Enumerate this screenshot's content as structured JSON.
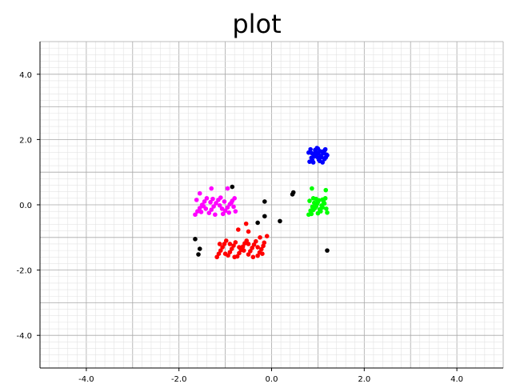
{
  "chart_data": {
    "type": "scatter",
    "title": "plot",
    "xlim": [
      -5,
      5
    ],
    "ylim": [
      -5,
      5
    ],
    "grid": true,
    "x_ticks": [
      "-4.0",
      "-2.0",
      "0.0",
      "2.0",
      "4.0"
    ],
    "y_ticks": [
      "4.0",
      "2.0",
      "0.0",
      "-2.0",
      "-4.0"
    ],
    "series": [
      {
        "color": "#0000ff",
        "points": [
          [
            0.82,
            1.32
          ],
          [
            0.86,
            1.44
          ],
          [
            0.9,
            1.56
          ],
          [
            0.94,
            1.68
          ],
          [
            0.98,
            1.74
          ],
          [
            1.02,
            1.38
          ],
          [
            1.06,
            1.5
          ],
          [
            1.1,
            1.62
          ],
          [
            1.14,
            1.4
          ],
          [
            1.18,
            1.54
          ],
          [
            0.84,
            1.7
          ],
          [
            0.88,
            1.36
          ],
          [
            0.92,
            1.48
          ],
          [
            0.96,
            1.6
          ],
          [
            1.0,
            1.72
          ],
          [
            1.04,
            1.34
          ],
          [
            1.08,
            1.46
          ],
          [
            1.12,
            1.58
          ],
          [
            1.16,
            1.7
          ],
          [
            1.2,
            1.52
          ],
          [
            0.8,
            1.6
          ],
          [
            0.9,
            1.3
          ],
          [
            1.0,
            1.45
          ],
          [
            1.1,
            1.3
          ],
          [
            1.14,
            1.66
          ],
          [
            0.95,
            1.52
          ],
          [
            1.05,
            1.64
          ],
          [
            0.87,
            1.58
          ],
          [
            1.17,
            1.45
          ],
          [
            1.0,
            1.58
          ]
        ]
      },
      {
        "color": "#00ff00",
        "points": [
          [
            0.8,
            -0.3
          ],
          [
            0.84,
            -0.18
          ],
          [
            0.88,
            -0.06
          ],
          [
            0.92,
            0.06
          ],
          [
            0.96,
            0.18
          ],
          [
            1.0,
            -0.26
          ],
          [
            1.04,
            -0.14
          ],
          [
            1.08,
            -0.02
          ],
          [
            1.12,
            0.1
          ],
          [
            1.16,
            0.2
          ],
          [
            1.2,
            -0.24
          ],
          [
            0.82,
            0.12
          ],
          [
            0.86,
            -0.28
          ],
          [
            0.9,
            0.2
          ],
          [
            0.94,
            -0.1
          ],
          [
            0.98,
            0.02
          ],
          [
            1.02,
            0.14
          ],
          [
            1.06,
            -0.2
          ],
          [
            1.1,
            -0.08
          ],
          [
            1.14,
            0.04
          ],
          [
            1.18,
            -0.12
          ],
          [
            1.0,
            0.08
          ],
          [
            0.9,
            -0.16
          ],
          [
            1.1,
            0.16
          ],
          [
            0.96,
            -0.04
          ],
          [
            0.87,
            0.5
          ],
          [
            1.17,
            0.45
          ]
        ]
      },
      {
        "color": "#ff00ff",
        "points": [
          [
            -1.65,
            -0.3
          ],
          [
            -1.6,
            -0.2
          ],
          [
            -1.55,
            -0.1
          ],
          [
            -1.5,
            0.0
          ],
          [
            -1.45,
            0.1
          ],
          [
            -1.4,
            0.2
          ],
          [
            -1.35,
            -0.25
          ],
          [
            -1.3,
            -0.15
          ],
          [
            -1.25,
            -0.05
          ],
          [
            -1.2,
            0.05
          ],
          [
            -1.15,
            0.15
          ],
          [
            -1.1,
            0.22
          ],
          [
            -1.05,
            -0.28
          ],
          [
            -1.0,
            -0.18
          ],
          [
            -0.95,
            -0.08
          ],
          [
            -0.9,
            0.02
          ],
          [
            -0.85,
            0.12
          ],
          [
            -0.8,
            0.2
          ],
          [
            -0.78,
            -0.2
          ],
          [
            -1.62,
            0.15
          ],
          [
            -1.52,
            -0.22
          ],
          [
            -1.42,
            -0.12
          ],
          [
            -1.32,
            0.08
          ],
          [
            -1.22,
            -0.3
          ],
          [
            -1.12,
            -0.02
          ],
          [
            -1.02,
            0.1
          ],
          [
            -0.92,
            -0.24
          ],
          [
            -0.82,
            -0.06
          ],
          [
            -1.47,
            -0.04
          ],
          [
            -1.27,
            0.18
          ],
          [
            -1.07,
            -0.12
          ],
          [
            -0.87,
            0.06
          ],
          [
            -1.55,
            0.35
          ],
          [
            -1.3,
            0.5
          ],
          [
            -0.95,
            0.5
          ]
        ]
      },
      {
        "color": "#ff0000",
        "points": [
          [
            -1.18,
            -1.6
          ],
          [
            -1.14,
            -1.5
          ],
          [
            -1.1,
            -1.4
          ],
          [
            -1.06,
            -1.3
          ],
          [
            -1.02,
            -1.2
          ],
          [
            -0.98,
            -1.1
          ],
          [
            -0.94,
            -1.55
          ],
          [
            -0.9,
            -1.45
          ],
          [
            -0.86,
            -1.35
          ],
          [
            -0.82,
            -1.25
          ],
          [
            -0.78,
            -1.15
          ],
          [
            -0.74,
            -1.58
          ],
          [
            -0.7,
            -1.48
          ],
          [
            -0.66,
            -1.38
          ],
          [
            -0.62,
            -1.28
          ],
          [
            -0.58,
            -1.18
          ],
          [
            -0.54,
            -1.1
          ],
          [
            -0.5,
            -1.52
          ],
          [
            -0.46,
            -1.42
          ],
          [
            -0.42,
            -1.32
          ],
          [
            -0.38,
            -1.22
          ],
          [
            -0.34,
            -1.12
          ],
          [
            -0.3,
            -1.56
          ],
          [
            -0.26,
            -1.46
          ],
          [
            -0.22,
            -1.36
          ],
          [
            -0.18,
            -1.26
          ],
          [
            -0.16,
            -1.16
          ],
          [
            -1.12,
            -1.2
          ],
          [
            -1.0,
            -1.5
          ],
          [
            -0.8,
            -1.6
          ],
          [
            -0.6,
            -1.4
          ],
          [
            -0.4,
            -1.6
          ],
          [
            -0.2,
            -1.5
          ],
          [
            -0.9,
            -1.2
          ],
          [
            -0.7,
            -1.3
          ],
          [
            -0.5,
            -1.2
          ],
          [
            -0.3,
            -1.3
          ],
          [
            -0.55,
            -0.58
          ],
          [
            -0.72,
            -0.76
          ],
          [
            -0.5,
            -0.82
          ],
          [
            -0.1,
            -0.96
          ],
          [
            -0.25,
            -1.0
          ]
        ]
      },
      {
        "color": "#000000",
        "points": [
          [
            -0.85,
            0.55
          ],
          [
            -1.65,
            -1.05
          ],
          [
            -1.55,
            -1.35
          ],
          [
            -1.58,
            -1.52
          ],
          [
            -0.3,
            -0.55
          ],
          [
            -0.15,
            -0.35
          ],
          [
            -0.15,
            0.1
          ],
          [
            0.18,
            -0.5
          ],
          [
            0.45,
            0.32
          ],
          [
            0.47,
            0.38
          ],
          [
            1.2,
            -1.4
          ]
        ]
      }
    ]
  }
}
